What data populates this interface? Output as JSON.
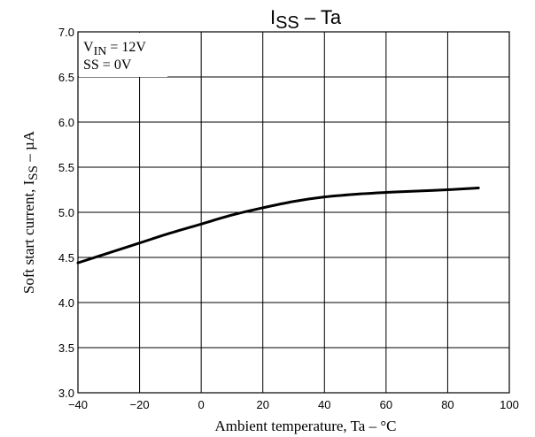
{
  "chart_data": {
    "type": "line",
    "title": {
      "main": "I",
      "sub": "SS",
      "rest": " – Ta"
    },
    "xlabel": "Ambient temperature, Ta  –  °C",
    "ylabel": {
      "main": "Soft start current, I",
      "sub": "SS",
      "rest": "  –  µA"
    },
    "xlim": [
      -40,
      100
    ],
    "ylim": [
      3.0,
      7.0
    ],
    "xticks": [
      -40,
      -20,
      0,
      20,
      40,
      60,
      80,
      100
    ],
    "xtick_labels": [
      "−40",
      "−20",
      "0",
      "20",
      "40",
      "60",
      "80",
      "100"
    ],
    "yticks": [
      3.0,
      3.5,
      4.0,
      4.5,
      5.0,
      5.5,
      6.0,
      6.5,
      7.0
    ],
    "ytick_labels": [
      "3.0",
      "3.5",
      "4.0",
      "4.5",
      "5.0",
      "5.5",
      "6.0",
      "6.5",
      "7.0"
    ],
    "grid": true,
    "annotations": [
      {
        "main": "V",
        "sub": "IN",
        "rest": " = 12V"
      },
      {
        "main": "SS = 0V",
        "sub": "",
        "rest": ""
      }
    ],
    "series": [
      {
        "x": [
          -40,
          -30,
          -20,
          -10,
          0,
          10,
          20,
          30,
          40,
          50,
          60,
          70,
          80,
          90
        ],
        "y": [
          4.44,
          4.55,
          4.66,
          4.77,
          4.87,
          4.97,
          5.05,
          5.12,
          5.17,
          5.2,
          5.22,
          5.235,
          5.25,
          5.27
        ]
      }
    ]
  }
}
